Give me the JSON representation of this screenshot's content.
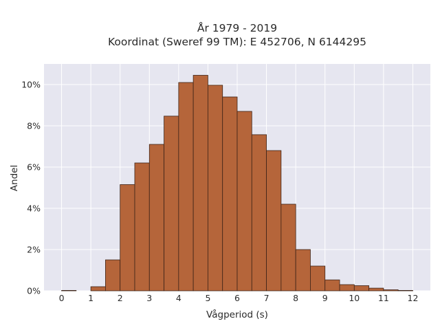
{
  "chart_data": {
    "type": "bar",
    "title": [
      "År 1979 - 2019",
      "Koordinat (Sweref 99 TM): E 452706, N 6144295"
    ],
    "xlabel": "Vågperiod (s)",
    "ylabel": "Andel",
    "xlim": [
      -0.6,
      12.6
    ],
    "ylim": [
      0,
      11
    ],
    "bin_width": 0.5,
    "x_ticks": [
      0,
      1,
      2,
      3,
      4,
      5,
      6,
      7,
      8,
      9,
      10,
      11,
      12
    ],
    "y_ticks": [
      0,
      2,
      4,
      6,
      8,
      10
    ],
    "y_tick_labels": [
      "0%",
      "2%",
      "4%",
      "6%",
      "8%",
      "10%"
    ],
    "bins": [
      {
        "x": 0.0,
        "value": 0.02
      },
      {
        "x": 1.0,
        "value": 0.2
      },
      {
        "x": 1.5,
        "value": 1.5
      },
      {
        "x": 2.0,
        "value": 5.15
      },
      {
        "x": 2.5,
        "value": 6.2
      },
      {
        "x": 3.0,
        "value": 7.1
      },
      {
        "x": 3.5,
        "value": 8.47
      },
      {
        "x": 4.0,
        "value": 10.1
      },
      {
        "x": 4.5,
        "value": 10.45
      },
      {
        "x": 5.0,
        "value": 9.97
      },
      {
        "x": 5.5,
        "value": 9.4
      },
      {
        "x": 6.0,
        "value": 8.7
      },
      {
        "x": 6.5,
        "value": 7.57
      },
      {
        "x": 7.0,
        "value": 6.8
      },
      {
        "x": 7.5,
        "value": 4.2
      },
      {
        "x": 8.0,
        "value": 2.0
      },
      {
        "x": 8.5,
        "value": 1.2
      },
      {
        "x": 9.0,
        "value": 0.53
      },
      {
        "x": 9.5,
        "value": 0.3
      },
      {
        "x": 10.0,
        "value": 0.25
      },
      {
        "x": 10.5,
        "value": 0.13
      },
      {
        "x": 11.0,
        "value": 0.05
      },
      {
        "x": 11.5,
        "value": 0.02
      }
    ],
    "grid": true,
    "colors": {
      "bar_fill": "#b5653a",
      "bar_edge": "#3d2418",
      "plot_bg": "#e6e6f0",
      "grid": "#ffffff"
    }
  }
}
